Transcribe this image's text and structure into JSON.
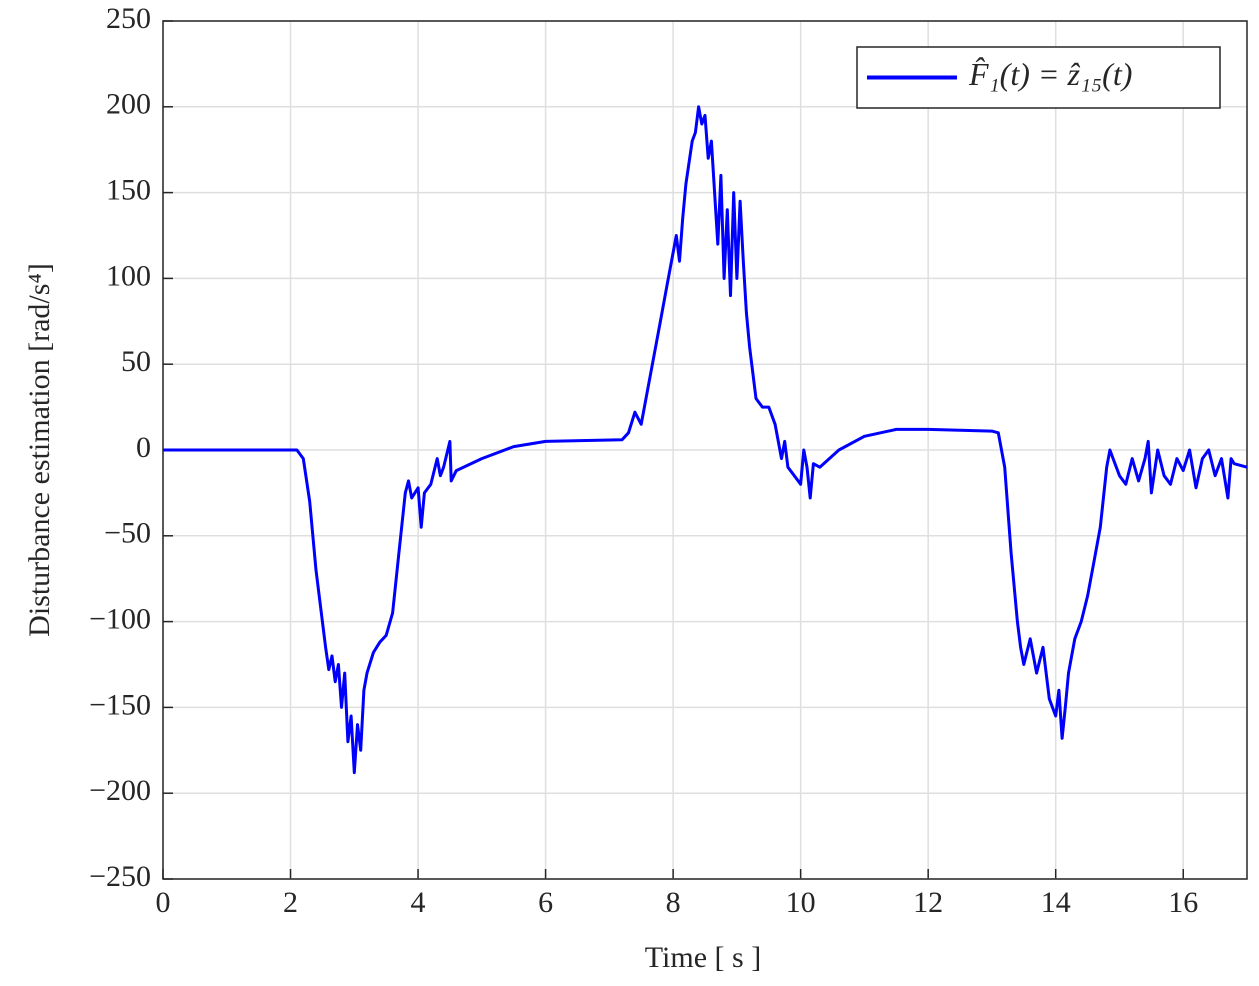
{
  "chart_data": {
    "type": "line",
    "ylabel": "Disturbance estimation  [rad/s⁴]",
    "xlabel": "Time [ s ]",
    "xlim": [
      0,
      17
    ],
    "ylim": [
      -250,
      250
    ],
    "xticks": [
      0,
      2,
      4,
      6,
      8,
      10,
      12,
      14,
      16
    ],
    "yticks": [
      {
        "value": -250,
        "label": "−250"
      },
      {
        "value": -200,
        "label": "−200"
      },
      {
        "value": -150,
        "label": "−150"
      },
      {
        "value": -100,
        "label": "−100"
      },
      {
        "value": -50,
        "label": "−50"
      },
      0,
      50,
      100,
      150,
      200,
      250
    ],
    "grid": true,
    "legend": "upper right",
    "x": [
      0,
      2.1,
      2.2,
      2.3,
      2.4,
      2.5,
      2.55,
      2.6,
      2.65,
      2.7,
      2.75,
      2.8,
      2.85,
      2.9,
      2.95,
      3.0,
      3.05,
      3.1,
      3.15,
      3.2,
      3.3,
      3.4,
      3.5,
      3.6,
      3.7,
      3.8,
      3.85,
      3.9,
      4.0,
      4.05,
      4.1,
      4.2,
      4.3,
      4.35,
      4.4,
      4.5,
      4.52,
      4.6,
      5,
      5.5,
      6,
      7.2,
      7.3,
      7.4,
      7.5,
      7.6,
      7.7,
      7.8,
      7.9,
      8.0,
      8.05,
      8.1,
      8.15,
      8.2,
      8.3,
      8.35,
      8.4,
      8.45,
      8.5,
      8.55,
      8.6,
      8.65,
      8.7,
      8.75,
      8.8,
      8.85,
      8.9,
      8.95,
      9.0,
      9.05,
      9.1,
      9.15,
      9.2,
      9.3,
      9.4,
      9.5,
      9.6,
      9.7,
      9.75,
      9.8,
      9.9,
      10.0,
      10.05,
      10.1,
      10.15,
      10.2,
      10.3,
      10.6,
      11,
      11.5,
      12,
      13,
      13.1,
      13.2,
      13.3,
      13.4,
      13.45,
      13.5,
      13.6,
      13.7,
      13.8,
      13.9,
      14.0,
      14.05,
      14.1,
      14.15,
      14.2,
      14.3,
      14.4,
      14.5,
      14.6,
      14.7,
      14.8,
      14.85,
      14.9,
      15.0,
      15.1,
      15.2,
      15.3,
      15.4,
      15.45,
      15.5,
      15.6,
      15.7,
      15.8,
      15.9,
      16.0,
      16.1,
      16.2,
      16.3,
      16.4,
      16.5,
      16.6,
      16.7,
      16.75,
      16.8,
      17
    ],
    "series": [
      {
        "name": "F̂₁(t) = ẑ₁₅(t)",
        "color": "#0000ff",
        "values": [
          0,
          0,
          -5,
          -30,
          -70,
          -100,
          -115,
          -128,
          -120,
          -135,
          -125,
          -150,
          -130,
          -170,
          -155,
          -188,
          -160,
          -175,
          -140,
          -130,
          -118,
          -112,
          -108,
          -95,
          -60,
          -25,
          -18,
          -28,
          -22,
          -45,
          -25,
          -20,
          -5,
          -15,
          -10,
          5,
          -18,
          -12,
          -5,
          2,
          5,
          6,
          10,
          22,
          15,
          35,
          55,
          75,
          95,
          115,
          125,
          110,
          135,
          155,
          180,
          185,
          200,
          190,
          195,
          170,
          180,
          150,
          120,
          160,
          100,
          140,
          90,
          150,
          100,
          145,
          110,
          80,
          60,
          30,
          25,
          25,
          15,
          -5,
          5,
          -10,
          -15,
          -20,
          0,
          -10,
          -28,
          -8,
          -10,
          0,
          8,
          12,
          12,
          11,
          10,
          -10,
          -60,
          -100,
          -115,
          -125,
          -110,
          -130,
          -115,
          -145,
          -155,
          -140,
          -168,
          -150,
          -130,
          -110,
          -100,
          -85,
          -65,
          -45,
          -10,
          0,
          -5,
          -15,
          -20,
          -5,
          -18,
          -5,
          5,
          -25,
          0,
          -15,
          -20,
          -5,
          -12,
          0,
          -22,
          -5,
          0,
          -15,
          -5,
          -28,
          -5,
          -8,
          -10
        ]
      }
    ]
  }
}
